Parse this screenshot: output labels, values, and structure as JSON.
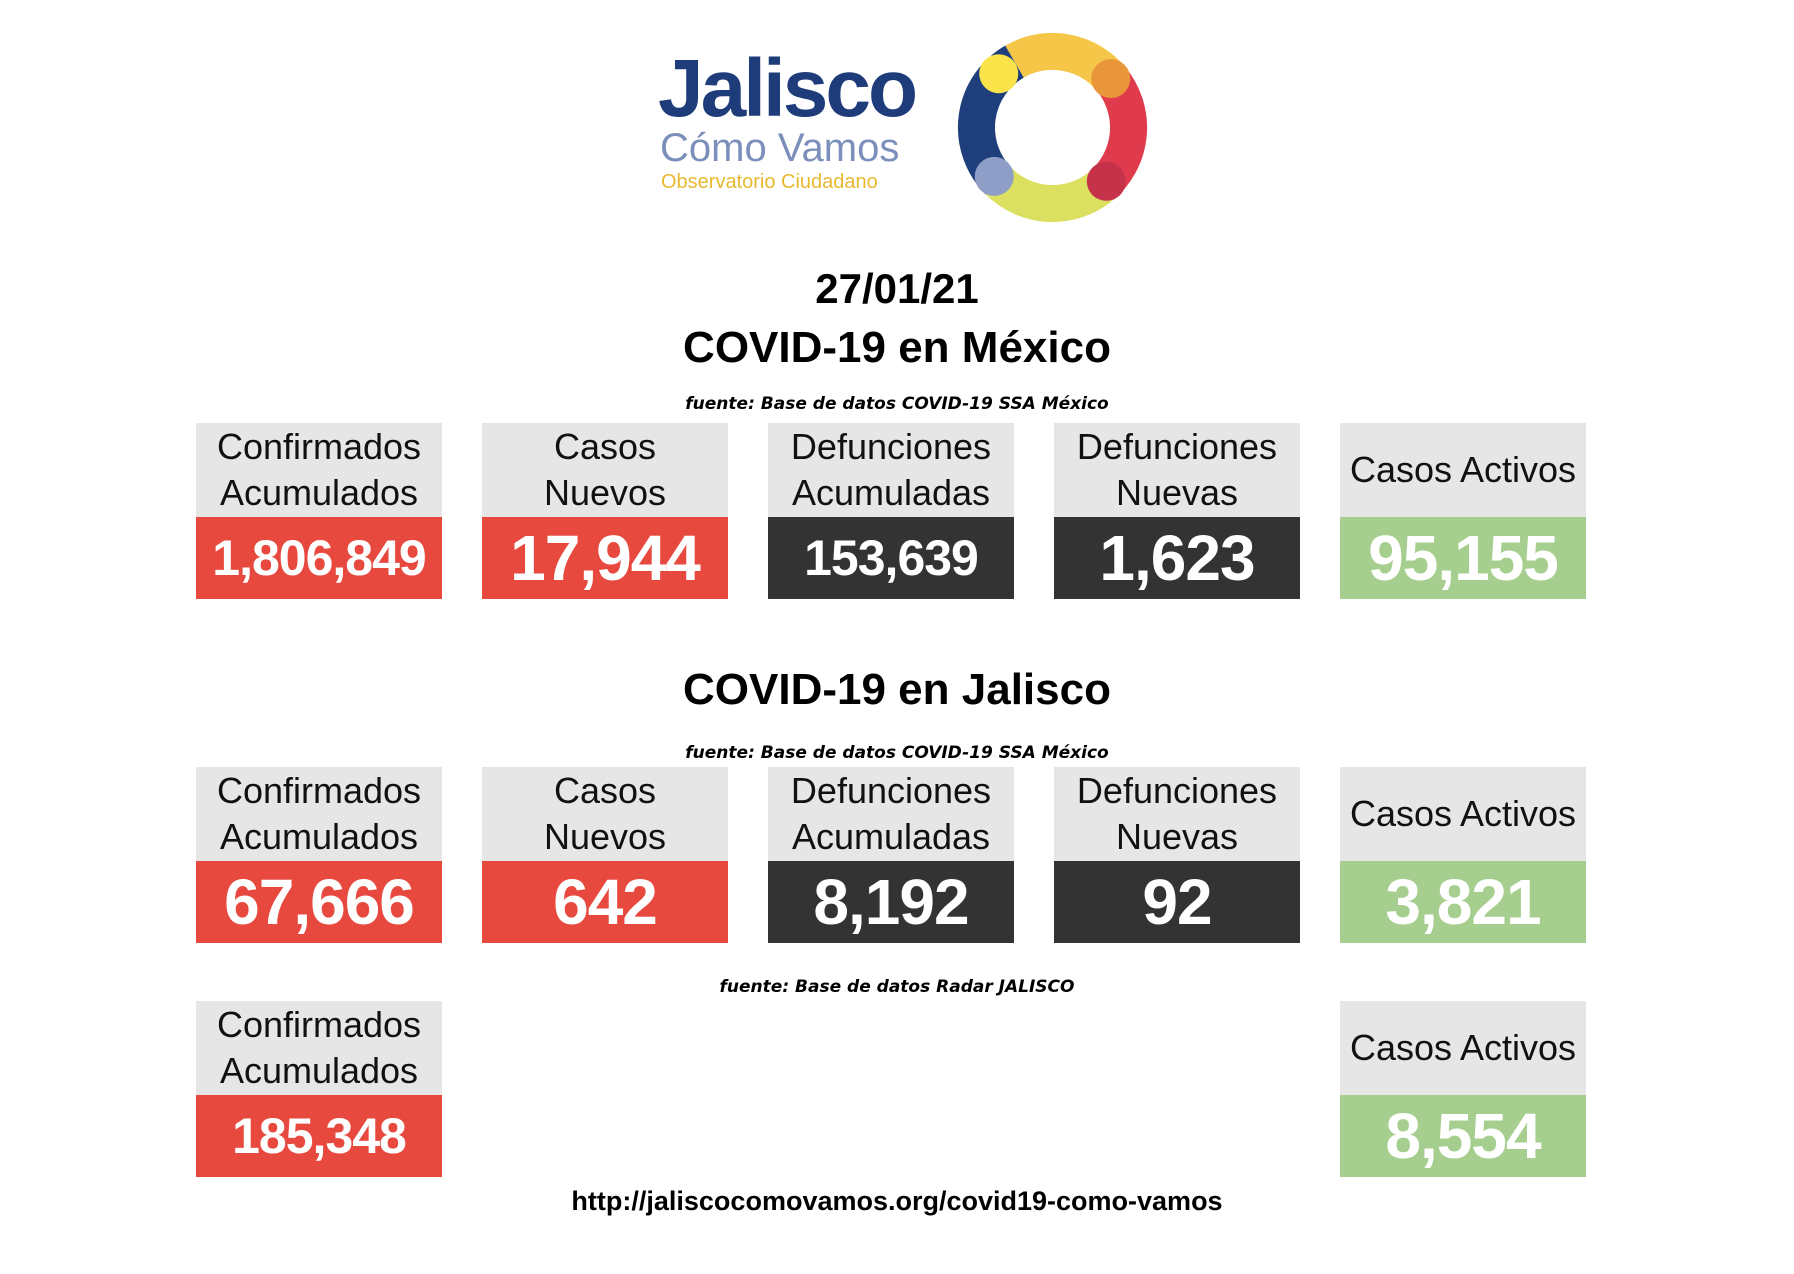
{
  "logo": {
    "main": "Jalisco",
    "sub": "Cómo Vamos",
    "tag": "Observatorio Ciudadano",
    "ring_colors": [
      "#f5c648",
      "#e9963b",
      "#e03a4d",
      "#c5324a",
      "#dbe060",
      "#8f9ec6",
      "#1e3f7c",
      "#fbe34a"
    ]
  },
  "date": "27/01/21",
  "mexico": {
    "title": "COVID-19 en México",
    "source": "fuente: Base de datos COVID-19 SSA México",
    "cards": [
      {
        "label_1": "Confirmados",
        "label_2": "Acumulados",
        "value": "1,806,849"
      },
      {
        "label_1": "Casos",
        "label_2": "Nuevos",
        "value": "17,944"
      },
      {
        "label_1": "Defunciones",
        "label_2": "Acumuladas",
        "value": "153,639"
      },
      {
        "label_1": "Defunciones",
        "label_2": "Nuevas",
        "value": "1,623"
      },
      {
        "label_1": "Casos Activos",
        "label_2": "",
        "value": "95,155"
      }
    ]
  },
  "jalisco": {
    "title": "COVID-19 en Jalisco",
    "source": "fuente: Base de datos COVID-19 SSA México",
    "cards": [
      {
        "label_1": "Confirmados",
        "label_2": "Acumulados",
        "value": "67,666"
      },
      {
        "label_1": "Casos",
        "label_2": "Nuevos",
        "value": "642"
      },
      {
        "label_1": "Defunciones",
        "label_2": "Acumuladas",
        "value": "8,192"
      },
      {
        "label_1": "Defunciones",
        "label_2": "Nuevas",
        "value": "92"
      },
      {
        "label_1": "Casos Activos",
        "label_2": "",
        "value": "3,821"
      }
    ]
  },
  "radar": {
    "source": "fuente: Base de datos Radar JALISCO",
    "cards": [
      {
        "label_1": "Confirmados",
        "label_2": "Acumulados",
        "value": "185,348"
      },
      {
        "label_1": "Casos Activos",
        "label_2": "",
        "value": "8,554"
      }
    ]
  },
  "url": "http://jaliscocomovamos.org/covid19-como-vamos"
}
